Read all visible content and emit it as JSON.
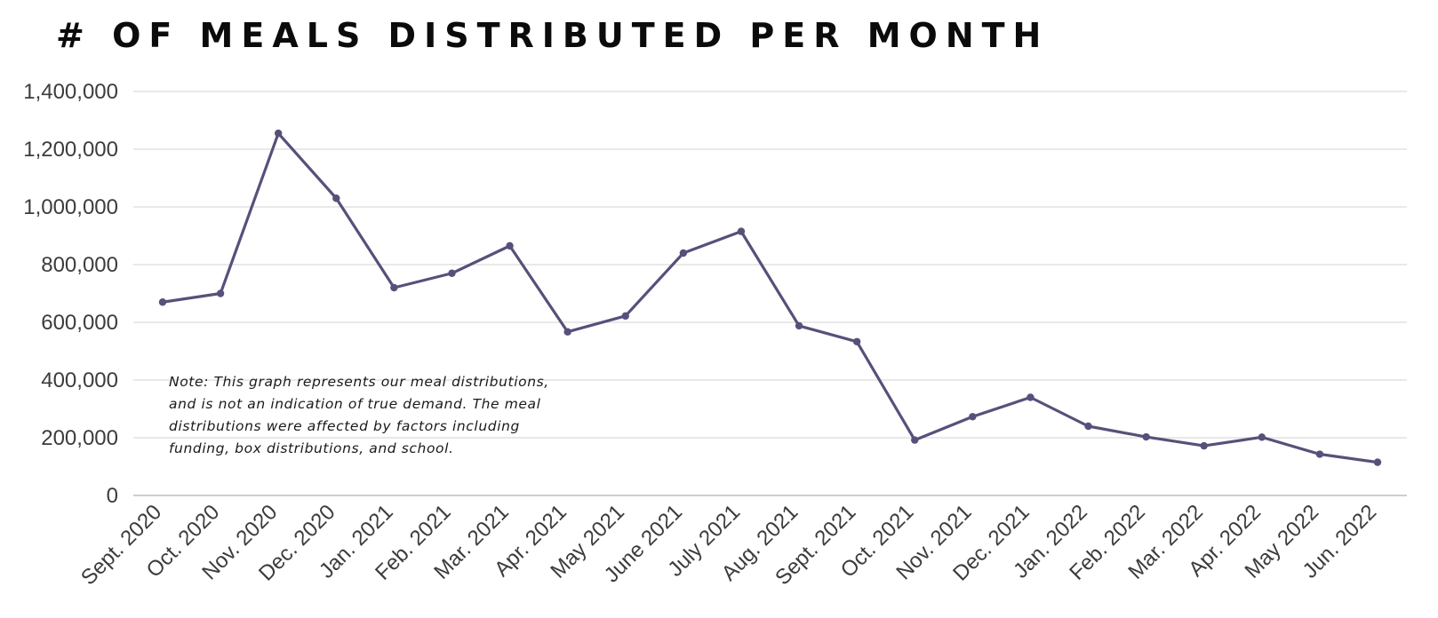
{
  "chart_data": {
    "type": "line",
    "title": "# OF MEALS DISTRIBUTED PER MONTH",
    "categories": [
      "Sept. 2020",
      "Oct. 2020",
      "Nov. 2020",
      "Dec. 2020",
      "Jan. 2021",
      "Feb. 2021",
      "Mar. 2021",
      "Apr. 2021",
      "May 2021",
      "June 2021",
      "July 2021",
      "Aug. 2021",
      "Sept. 2021",
      "Oct. 2021",
      "Nov. 2021",
      "Dec. 2021",
      "Jan. 2022",
      "Feb. 2022",
      "Mar. 2022",
      "Apr. 2022",
      "May 2022",
      "Jun. 2022"
    ],
    "series": [
      {
        "values": [
          670000,
          700000,
          1255000,
          1030000,
          720000,
          770000,
          865000,
          567000,
          622000,
          840000,
          915000,
          588000,
          533000,
          192000,
          273000,
          340000,
          240000,
          203000,
          172000,
          202000,
          143000,
          115000
        ]
      }
    ],
    "y_ticks": [
      "0",
      "200,000",
      "400,000",
      "600,000",
      "800,000",
      "1,000,000",
      "1,200,000",
      "1,400,000"
    ],
    "ylim": [
      0,
      1400000
    ],
    "grid": true,
    "annotation": "Note: This graph represents our meal distributions, and is not an indication of true demand. The meal distributions were affected by factors including funding, box distributions, and school.",
    "colors": {
      "line": "#57507a",
      "grid": "#dcdcdc",
      "axis": "#bdbdbd"
    }
  }
}
